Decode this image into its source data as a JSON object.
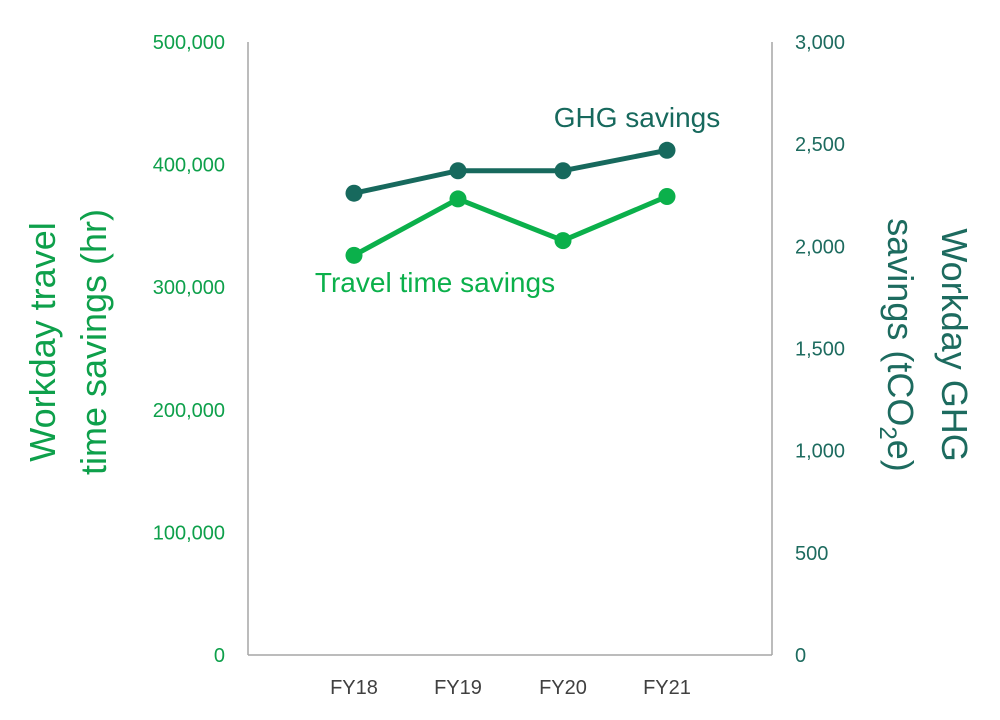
{
  "chart_data": {
    "type": "line",
    "categories": [
      "FY18",
      "FY19",
      "FY20",
      "FY21"
    ],
    "left_axis": {
      "title_line1": "Workday travel",
      "title_line2": "time savings (hr)",
      "ylim": [
        0,
        500000
      ],
      "ticks": [
        "0",
        "100,000",
        "200,000",
        "300,000",
        "400,000",
        "500,000"
      ],
      "color": "#0ea04b"
    },
    "right_axis": {
      "title_line1": "Workday GHG",
      "title_line2_a": "savings (tCO",
      "title_line2_sub": "2",
      "title_line2_b": "e)",
      "ylim": [
        0,
        3000
      ],
      "ticks": [
        "0",
        "500",
        "1,000",
        "1,500",
        "2,000",
        "2,500",
        "3,000"
      ],
      "color": "#1d6b5f"
    },
    "series": [
      {
        "name": "Travel time savings",
        "axis": "left",
        "values": [
          326000,
          372000,
          338000,
          374000
        ],
        "color": "#0bb04b"
      },
      {
        "name": "GHG savings",
        "axis": "right",
        "values": [
          2260,
          2370,
          2370,
          2470
        ],
        "color": "#17695d"
      }
    ],
    "grid": false,
    "legend": "inline labels"
  }
}
